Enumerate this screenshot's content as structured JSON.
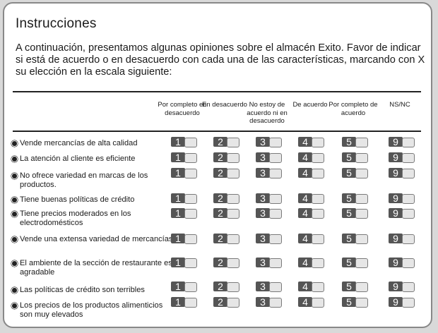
{
  "title": "Instrucciones",
  "intro": "A continuación, presentamos algunas opiniones sobre el almacén Exito. Favor de indicar si está de acuerdo o en desacuerdo con cada una de las características, marcando con X su elección en la escala siguiente:",
  "columns": [
    {
      "label": "Por completo en desacuerdo",
      "value": "1"
    },
    {
      "label": "En desacuerdo",
      "value": "2"
    },
    {
      "label": "No estoy de acuerdo ni en desacuerdo",
      "value": "3"
    },
    {
      "label": "De acuerdo",
      "value": "4"
    },
    {
      "label": "Por completo de acuerdo",
      "value": "5"
    },
    {
      "label": "NS/NC",
      "value": "9"
    }
  ],
  "items": [
    {
      "text": "Vende mercancías de alta calidad"
    },
    {
      "text": "La  atención al cliente es eficiente"
    },
    {
      "text": "No ofrece variedad en  marcas de los productos."
    },
    {
      "text": "Tiene buenas políticas de crédito"
    },
    {
      "text": "Tiene precios moderados en los electrodomésticos"
    },
    {
      "text": "Vende una extensa variedad de mercancías"
    },
    {
      "text": "El ambiente de la sección de restaurante es agradable"
    },
    {
      "text": "Las políticas de crédito son terribles"
    },
    {
      "text": "Los precios de los productos alimenticios son muy elevados"
    }
  ]
}
